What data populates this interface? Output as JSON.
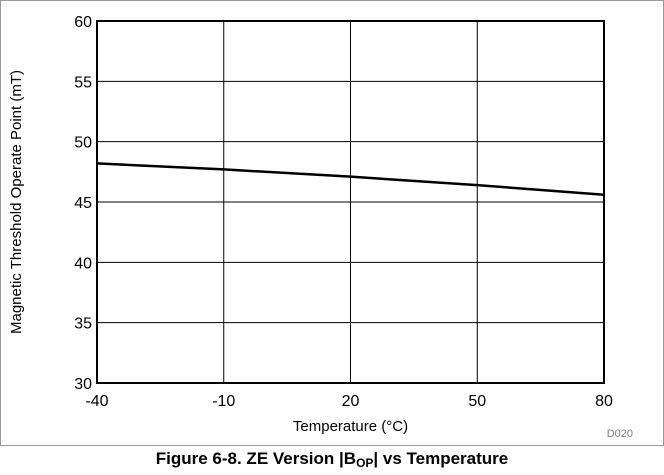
{
  "chart_data": {
    "type": "line",
    "xlabel": "Temperature (°C)",
    "ylabel": "Magnetic Threshold Operate Point (mT)",
    "xlim": [
      -40,
      80
    ],
    "ylim": [
      30,
      60
    ],
    "xticks": [
      -40,
      -10,
      20,
      50,
      80
    ],
    "yticks": [
      30,
      35,
      40,
      45,
      50,
      55,
      60
    ],
    "grid": true,
    "series": [
      {
        "x": [
          -40,
          -10,
          20,
          50,
          80
        ],
        "y": [
          48.2,
          47.7,
          47.1,
          46.4,
          45.6
        ]
      }
    ],
    "figure_id": "D020",
    "caption": {
      "prefix": "Figure 6-8. ZE Version |B",
      "subscript": "OP",
      "suffix": "| vs Temperature"
    }
  },
  "colors": {
    "line": "#000000",
    "grid": "#000000",
    "frame": "#9a9a9a",
    "figure_id_text": "#7f7f7f"
  }
}
